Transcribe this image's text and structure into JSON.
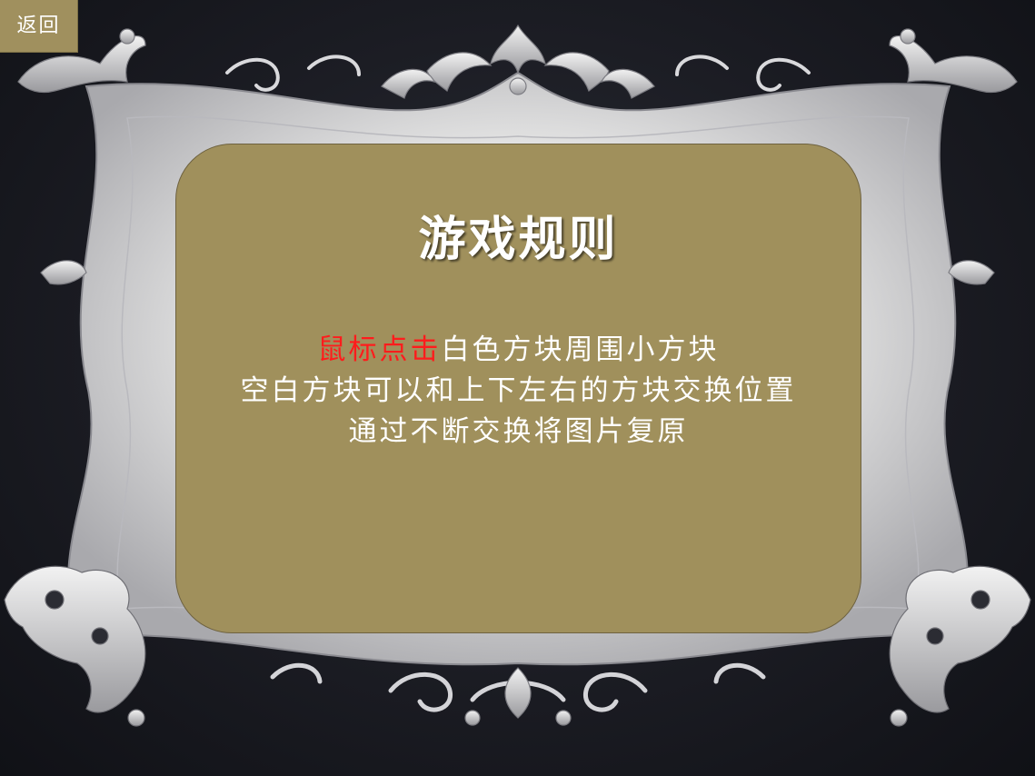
{
  "back_button": {
    "label": "返回"
  },
  "rules": {
    "title": "游戏规则",
    "line1_highlight": "鼠标点击",
    "line1_rest": "白色方块周围小方块",
    "line2": "空白方块可以和上下左右的方块交换位置",
    "line3": "通过不断交换将图片复原"
  },
  "colors": {
    "background": "#1b1c23",
    "frame_silver": "#d8d8d8",
    "panel_fill": "#a0905c",
    "back_button_fill": "#a0905e",
    "highlight_red": "#ff1c1c",
    "text_white": "#ffffff"
  }
}
